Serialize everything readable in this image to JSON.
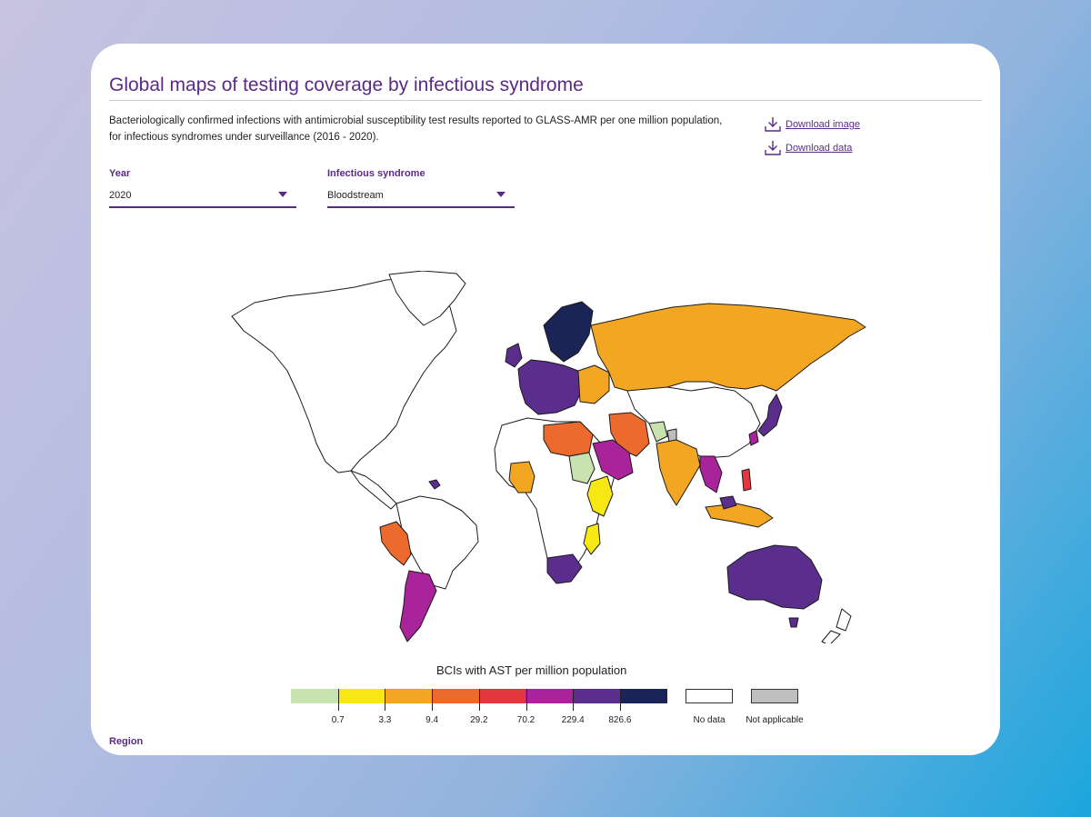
{
  "title": "Global maps of testing coverage by infectious syndrome",
  "description": "Bacteriologically confirmed infections with antimicrobial susceptibility test results reported to GLASS-AMR per one million population, for infectious syndromes under surveillance (2016 - 2020).",
  "links": {
    "download_image": "Download image",
    "download_data": "Download data",
    "icon": "download-icon"
  },
  "filters": {
    "year": {
      "label": "Year",
      "value": "2020"
    },
    "syndrome": {
      "label": "Infectious syndrome",
      "value": "Bloodstream"
    }
  },
  "legend": {
    "title": "BCIs with AST per million population",
    "colors": [
      "#c8e3b0",
      "#f7e712",
      "#f2a622",
      "#ec6a2d",
      "#e4363f",
      "#a9239a",
      "#5b2d8c",
      "#1a2456"
    ],
    "breaks": [
      "0.7",
      "3.3",
      "9.4",
      "29.2",
      "70.2",
      "229.4",
      "826.6"
    ],
    "no_data": {
      "label": "No data",
      "color": "#ffffff"
    },
    "not_applicable": {
      "label": "Not applicable",
      "color": "#bfbfbf"
    }
  },
  "region_label": "Region"
}
